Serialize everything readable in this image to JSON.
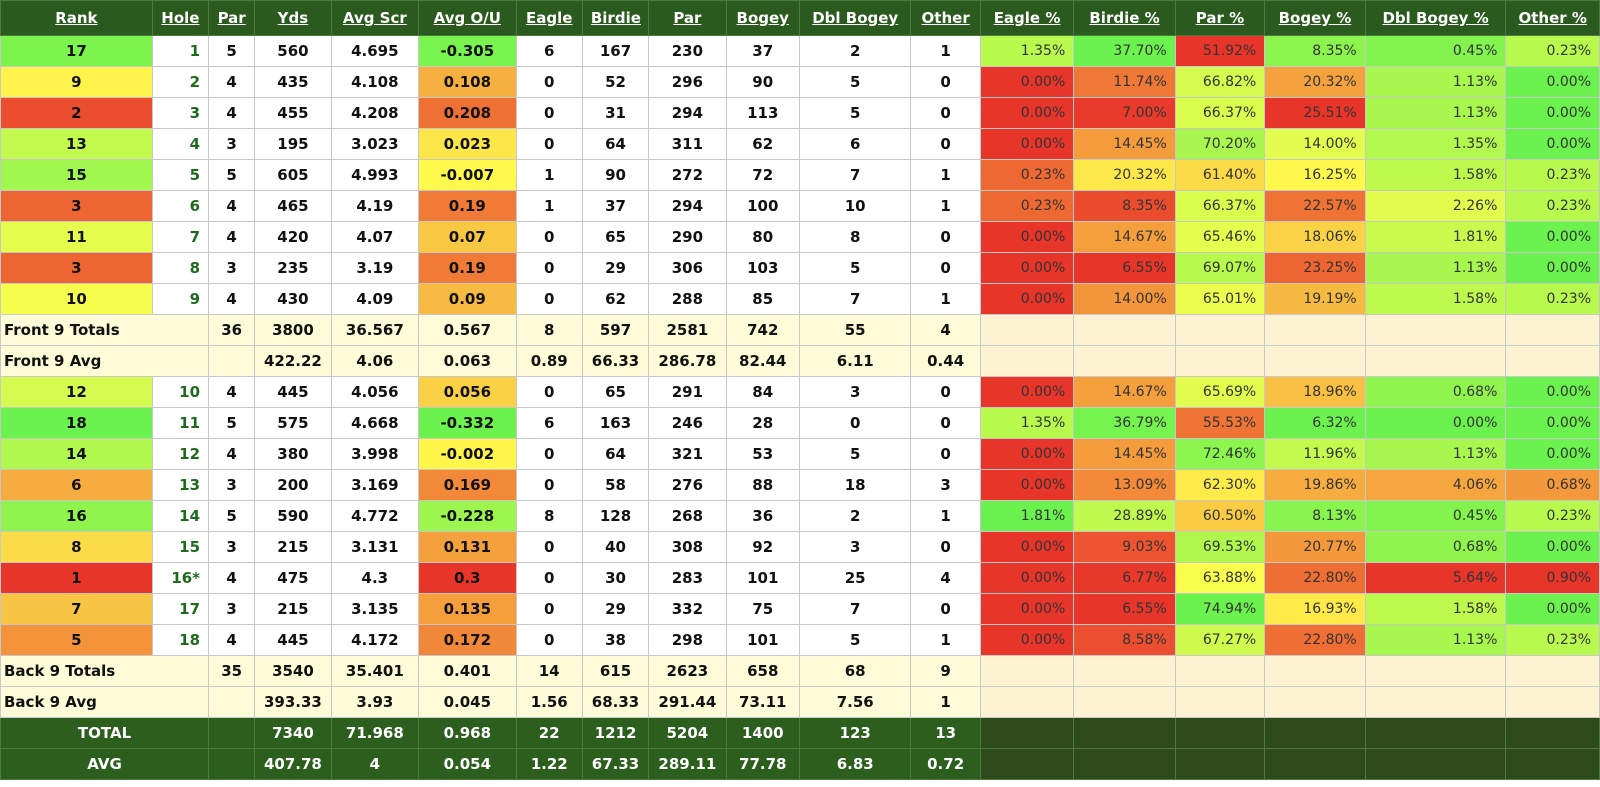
{
  "headers": [
    "Rank",
    "Hole",
    "Par",
    "Yds",
    "Avg Scr",
    "Avg O/U",
    "Eagle",
    "Birdie",
    "Par",
    "Bogey",
    "Dbl Bogey",
    "Other",
    "Eagle %",
    "Birdie %",
    "Par %",
    "Bogey %",
    "Dbl Bogey %",
    "Other %"
  ],
  "front_holes": [
    {
      "rank": "17",
      "hole": "1",
      "par": "5",
      "yds": "560",
      "avg": "4.695",
      "ou": "-0.305",
      "eagle": "6",
      "birdie": "167",
      "pars": "230",
      "bogey": "37",
      "dbl": "2",
      "other": "1",
      "pct": [
        "1.35%",
        "37.70%",
        "51.92%",
        "8.35%",
        "0.45%",
        "0.23%"
      ]
    },
    {
      "rank": "9",
      "hole": "2",
      "par": "4",
      "yds": "435",
      "avg": "4.108",
      "ou": "0.108",
      "eagle": "0",
      "birdie": "52",
      "pars": "296",
      "bogey": "90",
      "dbl": "5",
      "other": "0",
      "pct": [
        "0.00%",
        "11.74%",
        "66.82%",
        "20.32%",
        "1.13%",
        "0.00%"
      ]
    },
    {
      "rank": "2",
      "hole": "3",
      "par": "4",
      "yds": "455",
      "avg": "4.208",
      "ou": "0.208",
      "eagle": "0",
      "birdie": "31",
      "pars": "294",
      "bogey": "113",
      "dbl": "5",
      "other": "0",
      "pct": [
        "0.00%",
        "7.00%",
        "66.37%",
        "25.51%",
        "1.13%",
        "0.00%"
      ]
    },
    {
      "rank": "13",
      "hole": "4",
      "par": "3",
      "yds": "195",
      "avg": "3.023",
      "ou": "0.023",
      "eagle": "0",
      "birdie": "64",
      "pars": "311",
      "bogey": "62",
      "dbl": "6",
      "other": "0",
      "pct": [
        "0.00%",
        "14.45%",
        "70.20%",
        "14.00%",
        "1.35%",
        "0.00%"
      ]
    },
    {
      "rank": "15",
      "hole": "5",
      "par": "5",
      "yds": "605",
      "avg": "4.993",
      "ou": "-0.007",
      "eagle": "1",
      "birdie": "90",
      "pars": "272",
      "bogey": "72",
      "dbl": "7",
      "other": "1",
      "pct": [
        "0.23%",
        "20.32%",
        "61.40%",
        "16.25%",
        "1.58%",
        "0.23%"
      ]
    },
    {
      "rank": "3",
      "hole": "6",
      "par": "4",
      "yds": "465",
      "avg": "4.19",
      "ou": "0.19",
      "eagle": "1",
      "birdie": "37",
      "pars": "294",
      "bogey": "100",
      "dbl": "10",
      "other": "1",
      "pct": [
        "0.23%",
        "8.35%",
        "66.37%",
        "22.57%",
        "2.26%",
        "0.23%"
      ]
    },
    {
      "rank": "11",
      "hole": "7",
      "par": "4",
      "yds": "420",
      "avg": "4.07",
      "ou": "0.07",
      "eagle": "0",
      "birdie": "65",
      "pars": "290",
      "bogey": "80",
      "dbl": "8",
      "other": "0",
      "pct": [
        "0.00%",
        "14.67%",
        "65.46%",
        "18.06%",
        "1.81%",
        "0.00%"
      ]
    },
    {
      "rank": "3",
      "hole": "8",
      "par": "3",
      "yds": "235",
      "avg": "3.19",
      "ou": "0.19",
      "eagle": "0",
      "birdie": "29",
      "pars": "306",
      "bogey": "103",
      "dbl": "5",
      "other": "0",
      "pct": [
        "0.00%",
        "6.55%",
        "69.07%",
        "23.25%",
        "1.13%",
        "0.00%"
      ]
    },
    {
      "rank": "10",
      "hole": "9",
      "par": "4",
      "yds": "430",
      "avg": "4.09",
      "ou": "0.09",
      "eagle": "0",
      "birdie": "62",
      "pars": "288",
      "bogey": "85",
      "dbl": "7",
      "other": "1",
      "pct": [
        "0.00%",
        "14.00%",
        "65.01%",
        "19.19%",
        "1.58%",
        "0.23%"
      ]
    }
  ],
  "front_totals": {
    "label": "Front 9 Totals",
    "par": "36",
    "yds": "3800",
    "avg": "36.567",
    "ou": "0.567",
    "eagle": "8",
    "birdie": "597",
    "pars": "2581",
    "bogey": "742",
    "dbl": "55",
    "other": "4"
  },
  "front_avg": {
    "label": "Front 9 Avg",
    "yds": "422.22",
    "avg": "4.06",
    "ou": "0.063",
    "eagle": "0.89",
    "birdie": "66.33",
    "pars": "286.78",
    "bogey": "82.44",
    "dbl": "6.11",
    "other": "0.44"
  },
  "back_holes": [
    {
      "rank": "12",
      "hole": "10",
      "par": "4",
      "yds": "445",
      "avg": "4.056",
      "ou": "0.056",
      "eagle": "0",
      "birdie": "65",
      "pars": "291",
      "bogey": "84",
      "dbl": "3",
      "other": "0",
      "pct": [
        "0.00%",
        "14.67%",
        "65.69%",
        "18.96%",
        "0.68%",
        "0.00%"
      ]
    },
    {
      "rank": "18",
      "hole": "11",
      "par": "5",
      "yds": "575",
      "avg": "4.668",
      "ou": "-0.332",
      "eagle": "6",
      "birdie": "163",
      "pars": "246",
      "bogey": "28",
      "dbl": "0",
      "other": "0",
      "pct": [
        "1.35%",
        "36.79%",
        "55.53%",
        "6.32%",
        "0.00%",
        "0.00%"
      ]
    },
    {
      "rank": "14",
      "hole": "12",
      "par": "4",
      "yds": "380",
      "avg": "3.998",
      "ou": "-0.002",
      "eagle": "0",
      "birdie": "64",
      "pars": "321",
      "bogey": "53",
      "dbl": "5",
      "other": "0",
      "pct": [
        "0.00%",
        "14.45%",
        "72.46%",
        "11.96%",
        "1.13%",
        "0.00%"
      ]
    },
    {
      "rank": "6",
      "hole": "13",
      "par": "3",
      "yds": "200",
      "avg": "3.169",
      "ou": "0.169",
      "eagle": "0",
      "birdie": "58",
      "pars": "276",
      "bogey": "88",
      "dbl": "18",
      "other": "3",
      "pct": [
        "0.00%",
        "13.09%",
        "62.30%",
        "19.86%",
        "4.06%",
        "0.68%"
      ]
    },
    {
      "rank": "16",
      "hole": "14",
      "par": "5",
      "yds": "590",
      "avg": "4.772",
      "ou": "-0.228",
      "eagle": "8",
      "birdie": "128",
      "pars": "268",
      "bogey": "36",
      "dbl": "2",
      "other": "1",
      "pct": [
        "1.81%",
        "28.89%",
        "60.50%",
        "8.13%",
        "0.45%",
        "0.23%"
      ]
    },
    {
      "rank": "8",
      "hole": "15",
      "par": "3",
      "yds": "215",
      "avg": "3.131",
      "ou": "0.131",
      "eagle": "0",
      "birdie": "40",
      "pars": "308",
      "bogey": "92",
      "dbl": "3",
      "other": "0",
      "pct": [
        "0.00%",
        "9.03%",
        "69.53%",
        "20.77%",
        "0.68%",
        "0.00%"
      ]
    },
    {
      "rank": "1",
      "hole": "16*",
      "par": "4",
      "yds": "475",
      "avg": "4.3",
      "ou": "0.3",
      "eagle": "0",
      "birdie": "30",
      "pars": "283",
      "bogey": "101",
      "dbl": "25",
      "other": "4",
      "pct": [
        "0.00%",
        "6.77%",
        "63.88%",
        "22.80%",
        "5.64%",
        "0.90%"
      ]
    },
    {
      "rank": "7",
      "hole": "17",
      "par": "3",
      "yds": "215",
      "avg": "3.135",
      "ou": "0.135",
      "eagle": "0",
      "birdie": "29",
      "pars": "332",
      "bogey": "75",
      "dbl": "7",
      "other": "0",
      "pct": [
        "0.00%",
        "6.55%",
        "74.94%",
        "16.93%",
        "1.58%",
        "0.00%"
      ]
    },
    {
      "rank": "5",
      "hole": "18",
      "par": "4",
      "yds": "445",
      "avg": "4.172",
      "ou": "0.172",
      "eagle": "0",
      "birdie": "38",
      "pars": "298",
      "bogey": "101",
      "dbl": "5",
      "other": "1",
      "pct": [
        "0.00%",
        "8.58%",
        "67.27%",
        "22.80%",
        "1.13%",
        "0.23%"
      ]
    }
  ],
  "back_totals": {
    "label": "Back 9 Totals",
    "par": "35",
    "yds": "3540",
    "avg": "35.401",
    "ou": "0.401",
    "eagle": "14",
    "birdie": "615",
    "pars": "2623",
    "bogey": "658",
    "dbl": "68",
    "other": "9"
  },
  "back_avg": {
    "label": "Back 9 Avg",
    "yds": "393.33",
    "avg": "3.93",
    "ou": "0.045",
    "eagle": "1.56",
    "birdie": "68.33",
    "pars": "291.44",
    "bogey": "73.11",
    "dbl": "7.56",
    "other": "1"
  },
  "total": {
    "label": "TOTAL",
    "yds": "7340",
    "avg": "71.968",
    "ou": "0.968",
    "eagle": "22",
    "birdie": "1212",
    "pars": "5204",
    "bogey": "1400",
    "dbl": "123",
    "other": "13"
  },
  "avg": {
    "label": "AVG",
    "yds": "407.78",
    "avg": "4",
    "ou": "0.054",
    "eagle": "1.22",
    "birdie": "67.33",
    "pars": "289.11",
    "bogey": "77.78",
    "dbl": "6.83",
    "other": "0.72"
  },
  "colors": {
    "header_bg": "#2a5a1d",
    "scale_low": "#e8352a",
    "scale_mid": "#ffff4d",
    "scale_high": "#6cf24e",
    "subtotal_bg": "#fdfbd8",
    "grand_bg": "#2c5e1e"
  }
}
